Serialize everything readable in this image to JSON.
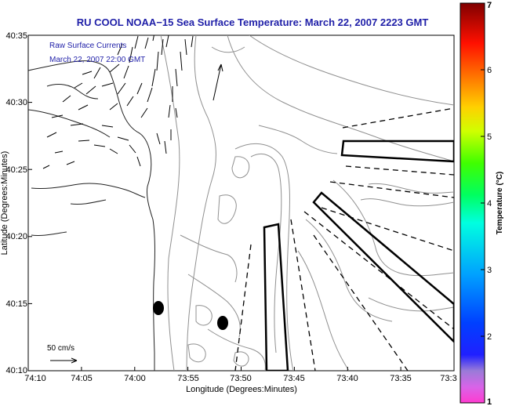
{
  "title": "RU COOL  NOAA−15  Sea Surface Temperature:  March 22, 2007 2223 GMT",
  "overlay": {
    "line1": "Raw Surface Currents",
    "line2": "March 22, 2007 22:00 GMT"
  },
  "scale_label": "50 cm/s",
  "axes": {
    "xlabel": "Longitude (Degrees:Minutes)",
    "ylabel": "Latitude (Degrees:Minutes)",
    "xticks": [
      "74:10",
      "74:05",
      "74:00",
      "73:55",
      "73:50",
      "73:45",
      "73:40",
      "73:35",
      "73:3"
    ],
    "yticks": [
      "40:35",
      "40:30",
      "40:25",
      "40:20",
      "40:15",
      "40:10"
    ]
  },
  "colorbar": {
    "label": "Temperature (°C)",
    "ticks": [
      "7",
      "6",
      "5",
      "4",
      "3",
      "2",
      "1"
    ],
    "range": [
      1,
      7
    ]
  },
  "colors": {
    "title": "#1f1fa8",
    "contour": "#909090",
    "coast": "#222222"
  }
}
